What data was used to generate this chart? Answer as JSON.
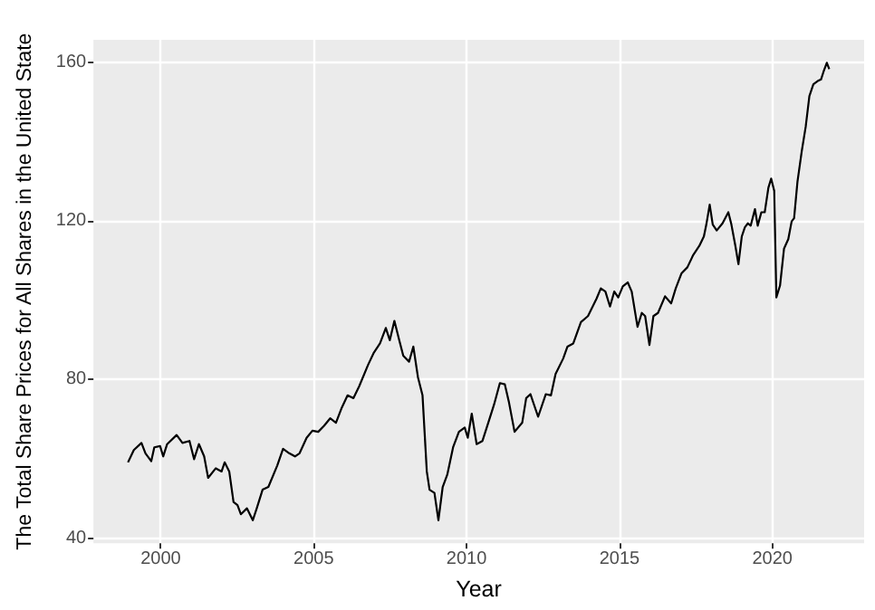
{
  "chart_data": {
    "type": "line",
    "xlabel": "Year",
    "ylabel": "The Total Share Prices for All Shares in the United State",
    "x": [
      1998.93,
      1999.12,
      1999.37,
      1999.5,
      1999.69,
      1999.79,
      1999.98,
      2000.08,
      2000.21,
      2000.52,
      2000.71,
      2000.94,
      2001.09,
      2001.25,
      2001.42,
      2001.55,
      2001.8,
      2001.99,
      2002.09,
      2002.24,
      2002.38,
      2002.51,
      2002.62,
      2002.82,
      2003.01,
      2003.14,
      2003.33,
      2003.52,
      2003.81,
      2004.0,
      2004.2,
      2004.39,
      2004.54,
      2004.77,
      2004.96,
      2005.15,
      2005.34,
      2005.54,
      2005.73,
      2005.92,
      2006.11,
      2006.3,
      2006.49,
      2006.78,
      2006.97,
      2007.17,
      2007.36,
      2007.49,
      2007.64,
      2007.8,
      2007.93,
      2008.12,
      2008.26,
      2008.41,
      2008.56,
      2008.7,
      2008.79,
      2008.95,
      2009.08,
      2009.22,
      2009.37,
      2009.56,
      2009.75,
      2009.94,
      2010.04,
      2010.17,
      2010.33,
      2010.52,
      2010.71,
      2010.9,
      2011.09,
      2011.25,
      2011.38,
      2011.57,
      2011.82,
      2011.95,
      2012.09,
      2012.34,
      2012.59,
      2012.76,
      2012.91,
      2013.16,
      2013.3,
      2013.49,
      2013.74,
      2013.97,
      2014.25,
      2014.39,
      2014.54,
      2014.69,
      2014.83,
      2014.96,
      2015.11,
      2015.27,
      2015.4,
      2015.59,
      2015.73,
      2015.84,
      2015.98,
      2016.11,
      2016.26,
      2016.49,
      2016.69,
      2016.84,
      2017.03,
      2017.22,
      2017.41,
      2017.61,
      2017.76,
      2017.84,
      2017.95,
      2018.05,
      2018.18,
      2018.37,
      2018.56,
      2018.66,
      2018.79,
      2018.89,
      2019.0,
      2019.1,
      2019.2,
      2019.29,
      2019.43,
      2019.52,
      2019.64,
      2019.75,
      2019.87,
      2019.96,
      2020.06,
      2020.13,
      2020.25,
      2020.38,
      2020.52,
      2020.63,
      2020.71,
      2020.82,
      2020.96,
      2021.09,
      2021.21,
      2021.34,
      2021.48,
      2021.59,
      2021.67,
      2021.78,
      2021.86
    ],
    "series": [
      {
        "color": "#000000",
        "values": [
          59.1,
          62.2,
          64.0,
          61.4,
          59.4,
          62.9,
          63.2,
          60.6,
          63.7,
          66.0,
          64.0,
          64.5,
          59.9,
          63.7,
          60.6,
          55.2,
          57.6,
          56.8,
          59.1,
          56.8,
          49.1,
          48.3,
          46.0,
          47.5,
          44.5,
          47.5,
          52.2,
          52.9,
          58.3,
          62.5,
          61.4,
          60.6,
          61.4,
          65.3,
          67.1,
          66.8,
          68.3,
          70.2,
          69.1,
          72.9,
          76.0,
          75.3,
          78.3,
          83.7,
          86.8,
          89.1,
          93.0,
          89.9,
          94.8,
          89.9,
          86.0,
          84.5,
          88.3,
          80.6,
          76.0,
          56.8,
          52.2,
          51.4,
          44.5,
          52.9,
          56.0,
          62.9,
          66.8,
          67.9,
          65.3,
          71.4,
          63.7,
          64.5,
          69.1,
          73.7,
          79.1,
          78.8,
          74.5,
          66.8,
          69.1,
          75.3,
          76.3,
          70.6,
          76.3,
          76.0,
          81.4,
          85.3,
          88.3,
          89.1,
          94.5,
          96.0,
          100.4,
          103.0,
          102.2,
          98.4,
          102.2,
          100.7,
          103.5,
          104.5,
          102.2,
          93.3,
          96.8,
          96.0,
          88.7,
          96.0,
          96.8,
          101.0,
          99.2,
          103.0,
          106.8,
          108.3,
          111.4,
          113.7,
          116.1,
          119.1,
          124.1,
          119.1,
          117.6,
          119.4,
          122.2,
          119.1,
          113.7,
          109.1,
          116.1,
          118.4,
          119.4,
          118.8,
          123.0,
          118.8,
          122.2,
          122.2,
          128.4,
          130.7,
          127.6,
          100.7,
          103.7,
          113.0,
          115.4,
          119.9,
          120.7,
          129.9,
          137.6,
          143.8,
          151.5,
          154.5,
          155.3,
          155.7,
          157.6,
          159.9,
          158.3
        ]
      }
    ],
    "xlim": [
      1997.8,
      2023.0
    ],
    "xticks": [
      2000,
      2005,
      2010,
      2015,
      2020
    ],
    "ylim": [
      38.7,
      165.7
    ],
    "yticks": [
      40,
      80,
      120,
      160
    ],
    "grid": true
  }
}
